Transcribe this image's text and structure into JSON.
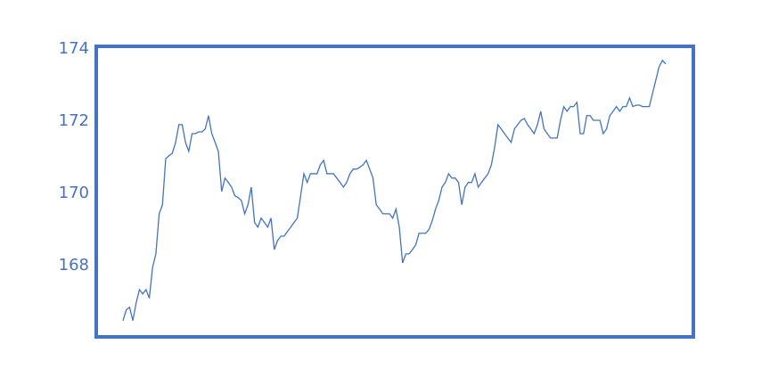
{
  "chart_data": {
    "type": "line",
    "series": [
      {
        "color": "#4472c4",
        "values": [
          166.47,
          166.77,
          166.84,
          166.47,
          166.96,
          167.33,
          167.21,
          167.33,
          167.09,
          167.95,
          168.32,
          169.43,
          169.68,
          170.96,
          171.04,
          171.11,
          171.41,
          171.9,
          171.9,
          171.41,
          171.16,
          171.65,
          171.65,
          171.7,
          171.7,
          171.78,
          172.15,
          171.65,
          171.41,
          171.16,
          170.05,
          170.42,
          170.3,
          170.17,
          169.93,
          169.88,
          169.8,
          169.43,
          169.68,
          170.17,
          169.19,
          169.06,
          169.31,
          169.19,
          169.06,
          169.31,
          168.44,
          168.69,
          168.81,
          168.81,
          168.94,
          169.06,
          169.19,
          169.31,
          169.93,
          170.54,
          170.3,
          170.54,
          170.54,
          170.54,
          170.79,
          170.91,
          170.54,
          170.54,
          170.54,
          170.42,
          170.3,
          170.17,
          170.3,
          170.54,
          170.67,
          170.67,
          170.72,
          170.79,
          170.91,
          170.67,
          170.42,
          169.68,
          169.56,
          169.43,
          169.43,
          169.43,
          169.31,
          169.56,
          169.06,
          168.07,
          168.32,
          168.32,
          168.44,
          168.57,
          168.89,
          168.89,
          168.89,
          168.99,
          169.23,
          169.56,
          169.8,
          170.17,
          170.3,
          170.54,
          170.42,
          170.42,
          170.3,
          169.68,
          170.17,
          170.3,
          170.3,
          170.54,
          170.17,
          170.3,
          170.42,
          170.54,
          170.79,
          171.28,
          171.9,
          171.78,
          171.65,
          171.53,
          171.41,
          171.78,
          171.9,
          172.02,
          172.07,
          171.9,
          171.78,
          171.65,
          171.9,
          172.27,
          171.78,
          171.65,
          171.53,
          171.53,
          171.53,
          172.02,
          172.4,
          172.27,
          172.4,
          172.4,
          172.52,
          171.65,
          171.65,
          172.15,
          172.15,
          172.02,
          172.02,
          172.02,
          171.65,
          171.78,
          172.15,
          172.27,
          172.4,
          172.27,
          172.4,
          172.4,
          172.64,
          172.4,
          172.44,
          172.44,
          172.4,
          172.4,
          172.4,
          172.77,
          173.14,
          173.51,
          173.68,
          173.58
        ]
      }
    ],
    "ylim": [
      166.02,
      174.07
    ],
    "yticks": [
      168,
      170,
      172,
      174
    ],
    "grid": false
  }
}
